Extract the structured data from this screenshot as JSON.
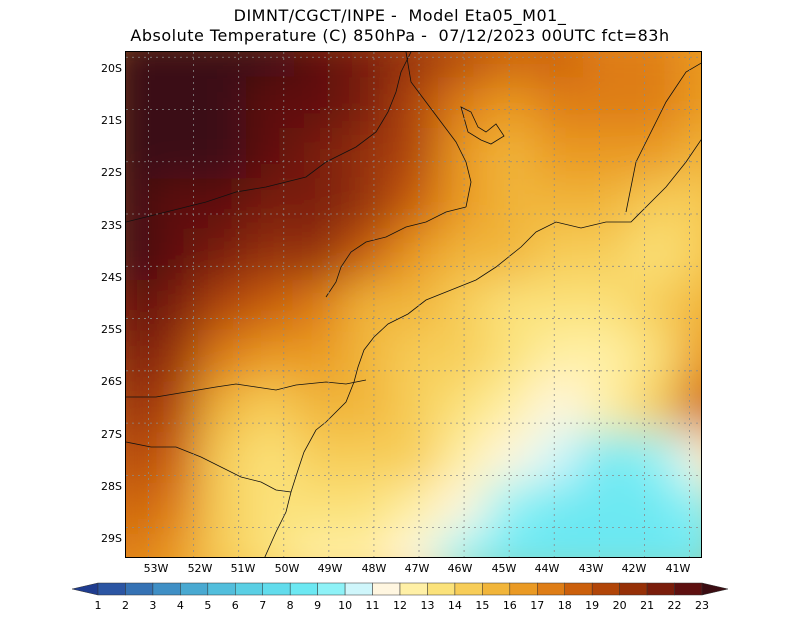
{
  "header": {
    "title_line1": "DIMNT/CGCT/INPE -  Model Eta05_M01_",
    "title_line2": "Absolute Temperature (C) 850hPa -  07/12/2023 00UTC fct=83h"
  },
  "axes": {
    "lat_labels": [
      "20S",
      "21S",
      "22S",
      "23S",
      "24S",
      "25S",
      "26S",
      "27S",
      "28S",
      "29S"
    ],
    "lon_labels": [
      "53W",
      "52W",
      "51W",
      "50W",
      "49W",
      "48W",
      "47W",
      "46W",
      "45W",
      "44W",
      "43W",
      "42W",
      "41W"
    ]
  },
  "colorbar": {
    "levels": [
      "1",
      "2",
      "3",
      "4",
      "5",
      "6",
      "7",
      "8",
      "9",
      "10",
      "11",
      "12",
      "13",
      "14",
      "15",
      "16",
      "17",
      "18",
      "19",
      "20",
      "21",
      "22",
      "23"
    ],
    "colors": [
      "#1f3c8f",
      "#2b55a3",
      "#3572b4",
      "#3f8fc5",
      "#49a9d1",
      "#52bedc",
      "#5acfe4",
      "#62dcec",
      "#6ce8f2",
      "#8ef2f7",
      "#cff6fb",
      "#fff6e0",
      "#fff0a6",
      "#fbe27a",
      "#f7cd58",
      "#f1b53a",
      "#ea9a24",
      "#de7d16",
      "#cb5f0b",
      "#b14508",
      "#963007",
      "#7a1d0b",
      "#5e1010",
      "#3b0d12"
    ]
  },
  "chart_data": {
    "type": "heatmap",
    "title": "Absolute Temperature (C) 850hPa",
    "model": "Eta05_M01_",
    "init": "07/12/2023 00UTC",
    "forecast_hours": 83,
    "lon_range": [
      -53.5,
      -40.7
    ],
    "lat_range": [
      -29.6,
      -19.9
    ],
    "units": "C",
    "grid": [
      [
        23,
        23,
        23,
        23,
        22,
        21,
        20,
        19,
        18,
        18,
        17,
        17,
        16
      ],
      [
        23,
        23,
        23,
        22,
        22,
        21,
        19,
        17,
        16,
        17,
        17,
        17,
        16
      ],
      [
        23,
        23,
        23,
        22,
        21,
        20,
        19,
        16,
        15,
        16,
        16,
        16,
        15
      ],
      [
        23,
        22,
        22,
        21,
        21,
        20,
        18,
        16,
        15,
        15,
        15,
        14,
        14
      ],
      [
        23,
        22,
        21,
        20,
        20,
        18,
        16,
        15,
        15,
        14,
        14,
        13,
        14
      ],
      [
        22,
        21,
        19,
        18,
        17,
        15,
        15,
        14,
        13,
        13,
        13,
        14,
        15
      ],
      [
        21,
        20,
        17,
        16,
        16,
        15,
        14,
        14,
        13,
        12,
        12,
        13,
        16
      ],
      [
        20,
        19,
        15,
        14,
        15,
        15,
        14,
        13,
        12,
        11,
        12,
        14,
        18
      ],
      [
        19,
        18,
        14,
        13,
        14,
        14,
        14,
        12,
        11,
        10,
        8,
        9,
        11
      ],
      [
        18,
        17,
        14,
        13,
        13,
        13,
        12,
        11,
        9,
        8,
        8,
        8,
        9
      ],
      [
        17,
        16,
        14,
        13,
        12,
        12,
        11,
        9,
        8,
        8,
        8,
        8,
        8
      ]
    ]
  }
}
